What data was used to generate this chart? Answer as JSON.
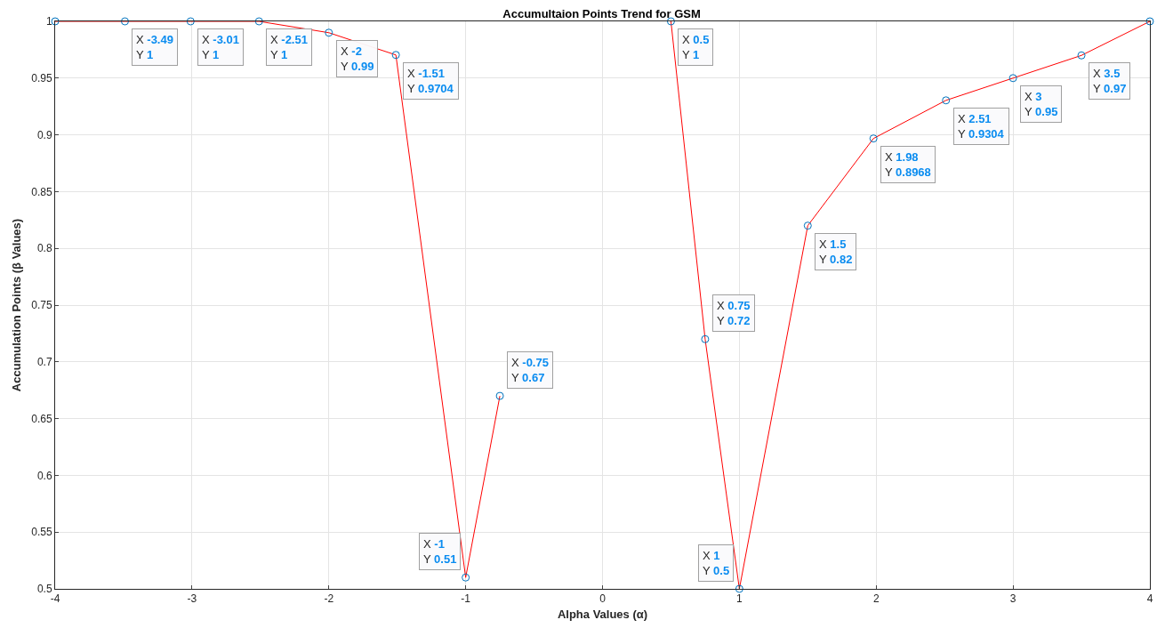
{
  "chart_data": {
    "type": "line",
    "title": "Accumultaion Points Trend for GSM",
    "xlabel": "Alpha Values (α)",
    "ylabel": "Accumulation Points (β Values)",
    "x": [
      -4,
      -3.49,
      -3.01,
      -2.51,
      -2,
      -1.51,
      -1,
      -0.75,
      0,
      0.5,
      0.75,
      1,
      1.5,
      1.98,
      2.51,
      3,
      3.5,
      4
    ],
    "series": [
      {
        "color": "#ff0000",
        "values": [
          1,
          1,
          1,
          1,
          0.99,
          0.9704,
          0.51,
          0.67,
          null,
          1,
          0.72,
          0.5,
          0.82,
          0.8968,
          0.9304,
          0.95,
          0.97,
          1
        ]
      }
    ],
    "marker": "circle",
    "line_style": "solid",
    "grid": true,
    "legend": false,
    "xlim": [
      -4,
      4
    ],
    "xticks": [
      -4,
      -3,
      -2,
      -1,
      0,
      1,
      2,
      3,
      4
    ],
    "ylim": [
      0.5,
      1
    ],
    "yticks": [
      0.5,
      0.55,
      0.6,
      0.65,
      0.7,
      0.75,
      0.8,
      0.85,
      0.9,
      0.95,
      1
    ],
    "annotations": [
      {
        "text": "X -3.49\nY 1",
        "x": -3.49,
        "y": 1
      },
      {
        "text": "X -3.01\nY 1",
        "x": -3.01,
        "y": 1
      },
      {
        "text": "X -2.51\nY 1",
        "x": -2.51,
        "y": 1
      },
      {
        "text": "X -2\nY 0.99",
        "x": -2,
        "y": 0.99
      },
      {
        "text": "X -1.51\nY 0.9704",
        "x": -1.51,
        "y": 0.9704
      },
      {
        "text": "X -1\nY 0.51",
        "x": -1,
        "y": 0.51
      },
      {
        "text": "X -0.75\nY 0.67",
        "x": -0.75,
        "y": 0.67
      },
      {
        "text": "X 0.5\nY 1",
        "x": 0.5,
        "y": 1
      },
      {
        "text": "X 0.75\nY 0.72",
        "x": 0.75,
        "y": 0.72
      },
      {
        "text": "X 1\nY 0.5",
        "x": 1,
        "y": 0.5
      },
      {
        "text": "X 1.5\nY 0.82",
        "x": 1.5,
        "y": 0.82
      },
      {
        "text": "X 1.98\nY 0.8968",
        "x": 1.98,
        "y": 0.8968
      },
      {
        "text": "X 2.51\nY 0.9304",
        "x": 2.51,
        "y": 0.9304
      },
      {
        "text": "X 3\nY 0.95",
        "x": 3,
        "y": 0.95
      },
      {
        "text": "X 3.5\nY 0.97",
        "x": 3.5,
        "y": 0.97
      }
    ]
  }
}
